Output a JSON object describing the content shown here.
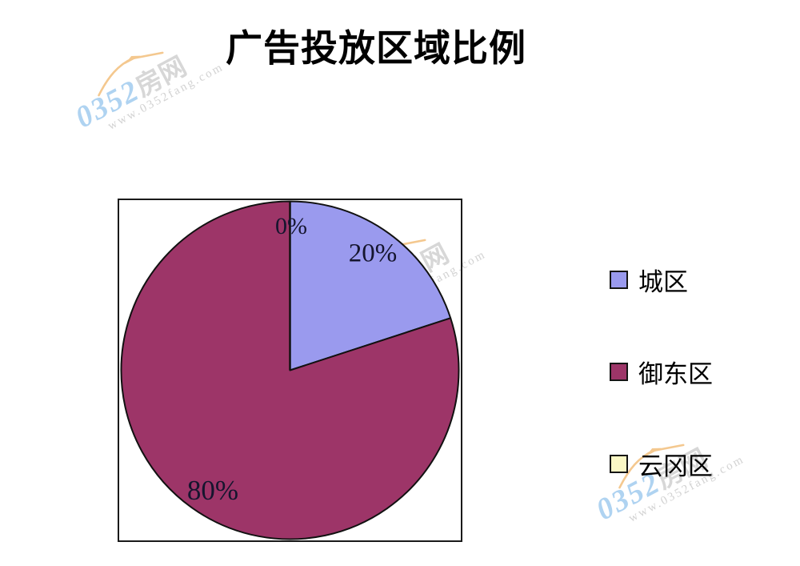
{
  "chart_data": {
    "type": "pie",
    "title": "广告投放区域比例",
    "direction": "clockwise",
    "start_angle_deg": 0,
    "legend_position": "right",
    "plot_border": true,
    "outline_color": "#111111",
    "items": [
      {
        "label": "城区",
        "value": 20,
        "pct_label": "20%",
        "color": "#9A9AEE"
      },
      {
        "label": "御东区",
        "value": 80,
        "pct_label": "80%",
        "color": "#9D3568"
      },
      {
        "label": "云冈区",
        "value": 0,
        "pct_label": "0%",
        "color": "#FBF8C5"
      }
    ]
  },
  "watermark": {
    "brand": "0352",
    "brand_suffix": "房网",
    "url": "www.0352fang.com",
    "colors": {
      "blue": "#ABD1F0",
      "gray": "#D5D5D5",
      "orange": "#F4C88F"
    }
  }
}
